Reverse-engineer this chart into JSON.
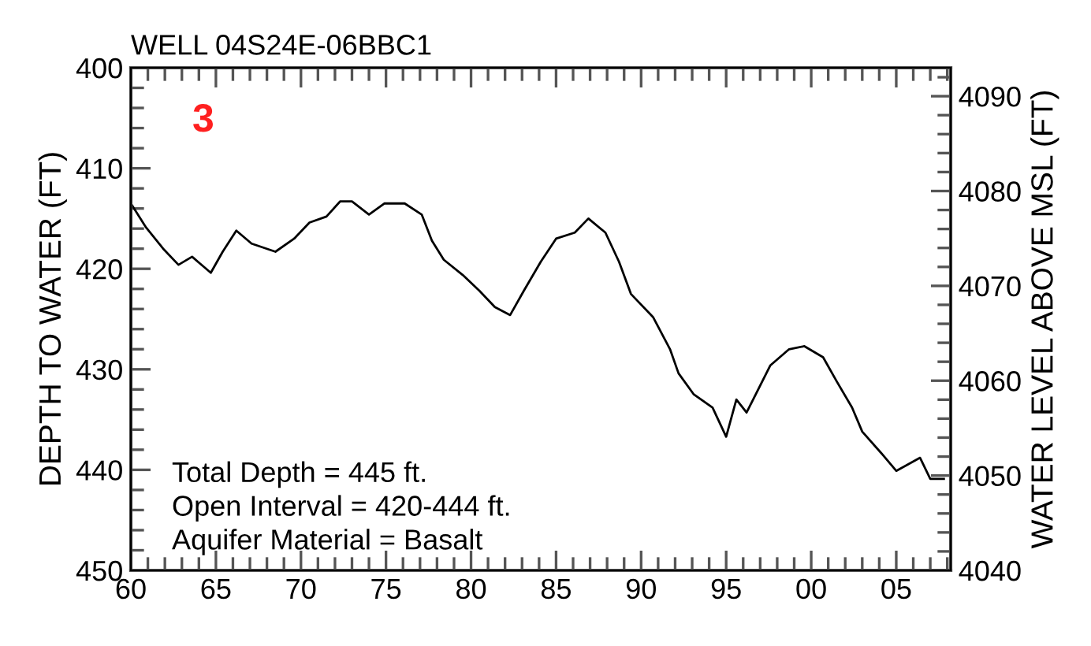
{
  "chart_data": {
    "type": "line",
    "title": "WELL 04S24E-06BBC1",
    "xlabel": null,
    "ylabel": "DEPTH TO WATER (FT)",
    "y2label": "WATER LEVEL ABOVE MSL (FT)",
    "annotations": [
      "3",
      "Total Depth = 445 ft.\nOpen Interval = 420-444 ft.\nAquifer Material = Basalt"
    ],
    "x": [
      1960.0,
      1960.9,
      1961.9,
      1962.8,
      1963.6,
      1964.7,
      1965.4,
      1966.2,
      1967.1,
      1968.5,
      1969.6,
      1970.5,
      1971.5,
      1972.3,
      1973.0,
      1974.0,
      1974.9,
      1976.1,
      1977.1,
      1977.7,
      1978.4,
      1979.5,
      1980.5,
      1981.4,
      1982.3,
      1983.1,
      1984.1,
      1985.0,
      1986.1,
      1986.9,
      1987.9,
      1988.7,
      1989.4,
      1990.7,
      1991.7,
      1992.2,
      1993.1,
      1994.2,
      1995.0,
      1995.6,
      1996.2,
      1997.6,
      1998.7,
      1999.6,
      2000.7,
      2001.5,
      2002.4,
      2003.0,
      2004.1,
      2005.0,
      2006.4,
      2007.0,
      2007.8
    ],
    "series": [
      {
        "color": "#000000",
        "values": [
          413.5,
          415.9,
          418.0,
          419.6,
          418.8,
          420.4,
          418.3,
          416.2,
          417.5,
          418.3,
          417.0,
          415.4,
          414.8,
          413.3,
          413.3,
          414.6,
          413.5,
          413.5,
          414.6,
          417.2,
          419.1,
          420.6,
          422.2,
          423.8,
          424.6,
          422.2,
          419.3,
          417.0,
          416.4,
          415.0,
          416.4,
          419.3,
          422.5,
          424.8,
          428.0,
          430.4,
          432.5,
          433.8,
          436.7,
          433.0,
          434.3,
          429.6,
          428.0,
          427.7,
          428.8,
          431.2,
          433.8,
          436.2,
          438.3,
          440.1,
          438.8,
          440.9,
          440.9
        ]
      }
    ],
    "xlim": [
      1960,
      2008.2
    ],
    "xticks": [
      {
        "value": 1960,
        "label": "60"
      },
      {
        "value": 1965,
        "label": "65"
      },
      {
        "value": 1970,
        "label": "70"
      },
      {
        "value": 1975,
        "label": "75"
      },
      {
        "value": 1980,
        "label": "80"
      },
      {
        "value": 1985,
        "label": "85"
      },
      {
        "value": 1990,
        "label": "90"
      },
      {
        "value": 1995,
        "label": "95"
      },
      {
        "value": 2000,
        "label": "00"
      },
      {
        "value": 2005,
        "label": "05"
      }
    ],
    "ylim": [
      450,
      400
    ],
    "yticks": [
      400,
      410,
      420,
      430,
      440,
      450
    ],
    "y2lim": [
      4040,
      4093
    ],
    "y2ticks": [
      4040,
      4050,
      4060,
      4070,
      4080,
      4090
    ],
    "grid": false,
    "legend": false,
    "marker": "none",
    "line_style": "solid"
  }
}
